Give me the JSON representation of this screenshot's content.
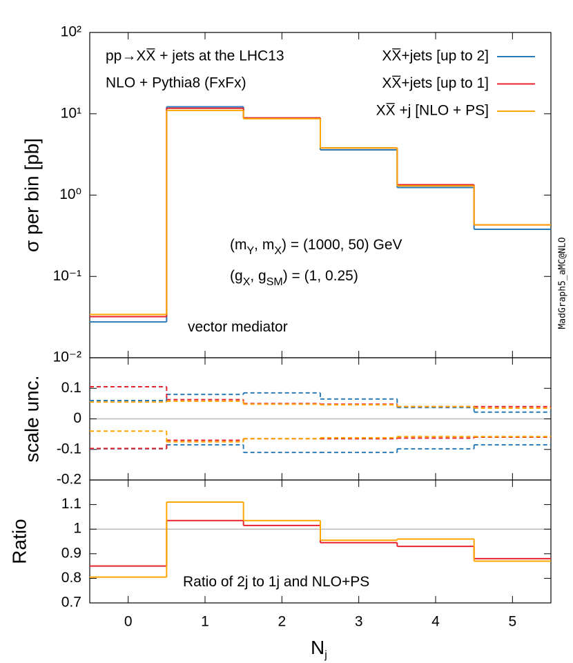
{
  "chart_data": [
    {
      "type": "step",
      "log_y": true,
      "title": "pp→XX̅ + jets at the LHC13",
      "subtitle": "NLO + Pythia8 (FxFx)",
      "ylabel": "σ per bin [pb]",
      "credit": "MadGraph5_aMC@NLO",
      "annotations": [
        {
          "parts": [
            "(m",
            "Y",
            ", m",
            "X",
            ") = (1000, 50) GeV"
          ]
        },
        {
          "parts": [
            "(g",
            "X",
            ", g",
            "SM",
            ") = (1, 0.25)"
          ]
        },
        {
          "parts": [
            "vector mediator"
          ]
        }
      ],
      "legend": "top right",
      "x": [
        0,
        1,
        2,
        3,
        4,
        5
      ],
      "xlim": [
        -0.5,
        5.5
      ],
      "ylim": [
        0.01,
        100
      ],
      "yticks": [
        {
          "value": 0.01,
          "label": "10⁻²"
        },
        {
          "value": 0.1,
          "label": "10⁻¹"
        },
        {
          "value": 1,
          "label": "10⁰"
        },
        {
          "value": 10,
          "label": "10¹"
        },
        {
          "value": 100,
          "label": "10²"
        }
      ],
      "series": [
        {
          "name": "XX̅+jets [up to 2]",
          "color": "#2a7ab8",
          "values": [
            0.0276,
            12.2,
            8.9,
            3.6,
            1.24,
            0.38
          ]
        },
        {
          "name": "XX̅+jets [up to 1]",
          "color": "#e8222a",
          "values": [
            0.032,
            11.7,
            8.9,
            3.8,
            1.34,
            0.43
          ]
        },
        {
          "name": "XX̅ +j  [NLO + PS]",
          "color": "#ffa500",
          "values": [
            0.034,
            11.0,
            8.7,
            3.8,
            1.3,
            0.43
          ]
        }
      ]
    },
    {
      "type": "band_step",
      "ylabel": "scale unc.",
      "x": [
        0,
        1,
        2,
        3,
        4,
        5
      ],
      "xlim": [
        -0.5,
        5.5
      ],
      "ylim": [
        -0.2,
        0.2
      ],
      "yticks": [
        -0.2,
        -0.1,
        0,
        0.1
      ],
      "reference_line": 0,
      "series": [
        {
          "color": "#2a7ab8",
          "upper": [
            0.06,
            0.08,
            0.085,
            0.065,
            0.037,
            0.022
          ],
          "lower": [
            -0.098,
            -0.085,
            -0.11,
            -0.11,
            -0.098,
            -0.085
          ]
        },
        {
          "color": "#e8222a",
          "upper": [
            0.105,
            0.063,
            0.05,
            0.048,
            0.04,
            0.04
          ],
          "lower": [
            -0.097,
            -0.07,
            -0.065,
            -0.065,
            -0.063,
            -0.06
          ]
        },
        {
          "color": "#ffa500",
          "upper": [
            0.055,
            0.058,
            0.048,
            0.046,
            0.04,
            0.035
          ],
          "lower": [
            -0.04,
            -0.075,
            -0.065,
            -0.062,
            -0.058,
            -0.058
          ]
        }
      ]
    },
    {
      "type": "step",
      "ylabel": "Ratio",
      "xlabel": [
        "N",
        "j"
      ],
      "annotations": [
        {
          "parts": [
            "Ratio of 2j to 1j and NLO+PS"
          ]
        }
      ],
      "x": [
        0,
        1,
        2,
        3,
        4,
        5
      ],
      "xlim": [
        -0.5,
        5.5
      ],
      "xticks": [
        0,
        1,
        2,
        3,
        4,
        5
      ],
      "ylim": [
        0.7,
        1.2
      ],
      "yticks": [
        0.7,
        0.8,
        0.9,
        1,
        1.1
      ],
      "reference_line": 1,
      "series": [
        {
          "color": "#e8222a",
          "values": [
            0.85,
            1.035,
            1.015,
            0.945,
            0.93,
            0.88
          ]
        },
        {
          "color": "#ffa500",
          "values": [
            0.805,
            1.11,
            1.035,
            0.955,
            0.96,
            0.87
          ]
        }
      ]
    }
  ]
}
